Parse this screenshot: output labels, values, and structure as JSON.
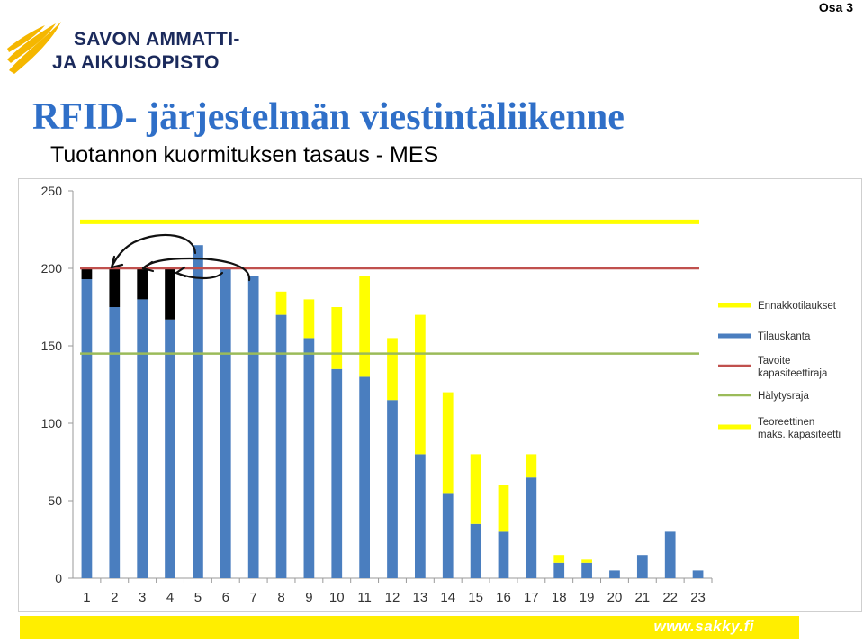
{
  "header": {
    "page_label": "Osa 3",
    "logo_line1": "SAVON AMMATTI-",
    "logo_line2": "JA AIKUISOPISTO",
    "title": "RFID- järjestelmän viestintäliikenne",
    "subtitle": "Tuotannon kuormituksen tasaus - MES"
  },
  "footer": {
    "url": "www.sakky.fi"
  },
  "colors": {
    "brand_blue": "#2f6fc8",
    "brand_yellow": "#ffee00",
    "navy": "#1b2a5c"
  },
  "chart_data": {
    "type": "bar",
    "stacked": true,
    "categories": [
      "1",
      "2",
      "3",
      "4",
      "5",
      "6",
      "7",
      "8",
      "9",
      "10",
      "11",
      "12",
      "13",
      "14",
      "15",
      "16",
      "17",
      "18",
      "19",
      "20",
      "21",
      "22",
      "23"
    ],
    "series": [
      {
        "name": "Tilauskanta",
        "color": "#4a7ebf",
        "values": [
          193,
          175,
          180,
          167,
          215,
          200,
          195,
          170,
          155,
          135,
          130,
          115,
          80,
          55,
          35,
          30,
          65,
          10,
          10,
          5,
          15,
          30,
          5
        ]
      },
      {
        "name": "Ennakkotilaukset",
        "color": "#ffff00",
        "values": [
          0,
          0,
          0,
          0,
          0,
          0,
          0,
          15,
          25,
          40,
          65,
          40,
          90,
          65,
          45,
          30,
          15,
          5,
          2,
          0,
          0,
          0,
          0
        ]
      },
      {
        "name": "",
        "color": "#000000",
        "values": [
          7,
          25,
          20,
          33,
          0,
          0,
          0,
          0,
          0,
          0,
          0,
          0,
          0,
          0,
          0,
          0,
          0,
          0,
          0,
          0,
          0,
          0,
          0
        ]
      }
    ],
    "reference_lines": [
      {
        "name": "Tavoite kapasiteettiraja",
        "value": 200,
        "color": "#c0504d"
      },
      {
        "name": "Hälytysraja",
        "value": 145,
        "color": "#9bbb59"
      },
      {
        "name": "Teoreettinen maks. kapasiteetti",
        "value": 230,
        "color": "#ffff00"
      }
    ],
    "legend": [
      {
        "label": "Ennakkotilaukset",
        "color": "#ffff00"
      },
      {
        "label": "Tilauskanta",
        "color": "#4a7ebf"
      },
      {
        "label": "Tavoite kapasiteettiraja",
        "color": "#c0504d"
      },
      {
        "label": "Hälytysraja",
        "color": "#9bbb59"
      },
      {
        "label": "Teoreettinen maks. kapasiteetti",
        "color": "#ffff00"
      }
    ],
    "legend_position": "right",
    "ylim": [
      0,
      250
    ],
    "yticks": [
      "0",
      "50",
      "100",
      "150",
      "200",
      "250"
    ],
    "grid": false,
    "title": "",
    "xlabel": "",
    "ylabel": ""
  }
}
